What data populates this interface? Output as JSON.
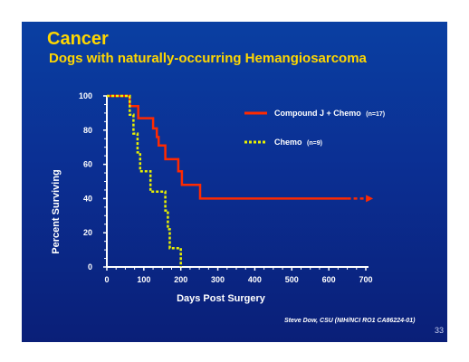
{
  "slide": {
    "title": "Cancer",
    "subtitle": "Dogs with naturally-occurring Hemangiosarcoma",
    "credit": "Steve Dow, CSU (NIH/NCI RO1 CA86224-01)",
    "page_number": "33"
  },
  "colors": {
    "background": "#0b2f93",
    "title": "#ffd700",
    "series_1": "#ff2a00",
    "series_2": "#e8f000",
    "axis": "#ffffff"
  },
  "chart_data": {
    "type": "line",
    "subtype": "kaplan-meier step",
    "xlabel": "Days Post Surgery",
    "ylabel": "Percent Surviving",
    "xlim": [
      0,
      700
    ],
    "ylim": [
      0,
      100
    ],
    "xticks": [
      0,
      100,
      200,
      300,
      400,
      500,
      600,
      700
    ],
    "yticks": [
      0,
      20,
      40,
      60,
      80,
      100
    ],
    "grid": false,
    "legend_position": "top-right",
    "series": [
      {
        "name": "Compound J + Chemo",
        "n_label": "(n=17)",
        "style": "solid",
        "color": "#ff2a00",
        "arrow_to_x": 720,
        "points": [
          [
            0,
            100
          ],
          [
            62,
            100
          ],
          [
            62,
            94
          ],
          [
            85,
            94
          ],
          [
            85,
            87
          ],
          [
            125,
            87
          ],
          [
            125,
            81
          ],
          [
            135,
            81
          ],
          [
            135,
            76
          ],
          [
            140,
            76
          ],
          [
            140,
            71
          ],
          [
            158,
            71
          ],
          [
            158,
            63
          ],
          [
            193,
            63
          ],
          [
            193,
            56
          ],
          [
            203,
            56
          ],
          [
            203,
            48
          ],
          [
            252,
            48
          ],
          [
            252,
            40
          ],
          [
            650,
            40
          ]
        ]
      },
      {
        "name": "Chemo",
        "n_label": "(n=9)",
        "style": "dotted",
        "color": "#e8f000",
        "points": [
          [
            0,
            100
          ],
          [
            62,
            100
          ],
          [
            62,
            89
          ],
          [
            72,
            89
          ],
          [
            72,
            78
          ],
          [
            83,
            78
          ],
          [
            83,
            67
          ],
          [
            90,
            67
          ],
          [
            90,
            56
          ],
          [
            118,
            56
          ],
          [
            118,
            44
          ],
          [
            158,
            44
          ],
          [
            158,
            33
          ],
          [
            165,
            33
          ],
          [
            165,
            22
          ],
          [
            170,
            22
          ],
          [
            170,
            11
          ],
          [
            200,
            11
          ],
          [
            200,
            0
          ]
        ]
      }
    ]
  }
}
